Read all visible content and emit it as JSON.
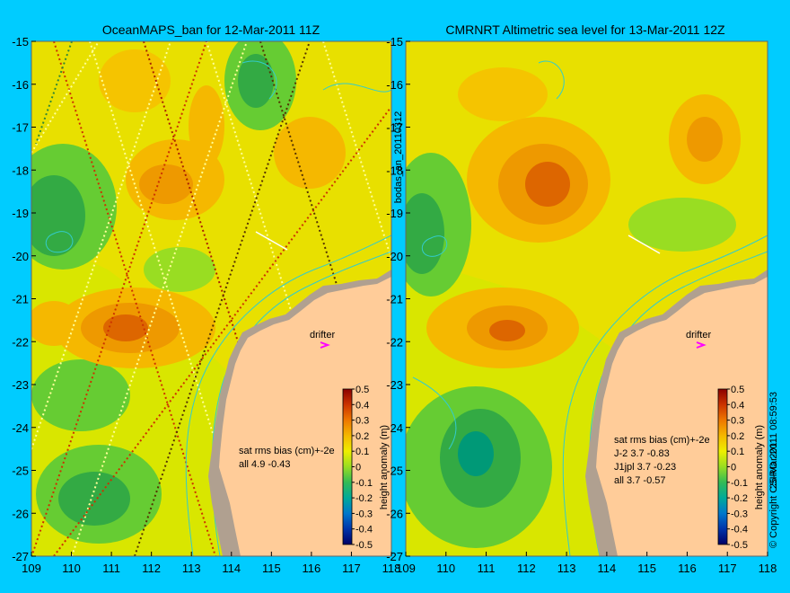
{
  "left_panel": {
    "title": "OceanMAPS_ban for 12-Mar-2011 11Z",
    "side_label": "bodas_an_20110312",
    "stats_header": "sat rms bias (cm)+-2e",
    "stats_rows": [
      "all 4.9 -0.43"
    ],
    "drifter_label": "drifter"
  },
  "right_panel": {
    "title": "CMRNRT Altimetric sea level  for 13-Mar-2011 12Z",
    "side_label": "25-Mar-2011 08:59:53",
    "stats_header": "sat rms bias (cm)+-2e",
    "stats_rows": [
      "J-2    3.7  -0.83",
      "J1jpl  3.7  -0.23",
      "all  3.7  -0.57"
    ],
    "drifter_label": "drifter",
    "copyright": "© Copyright CSIRO 2011"
  },
  "axes": {
    "lat_ticks": [
      "-15",
      "-16",
      "-17",
      "-18",
      "-19",
      "-20",
      "-21",
      "-22",
      "-23",
      "-24",
      "-25",
      "-26",
      "-27"
    ],
    "lon_ticks": [
      "109",
      "110",
      "111",
      "112",
      "113",
      "114",
      "115",
      "116",
      "117",
      "118"
    ]
  },
  "colorbar": {
    "label": "height anomaly (m)",
    "ticks": [
      "0.5",
      "0.4",
      "0.3",
      "0.2",
      "0.1",
      "0",
      "-0.1",
      "-0.2",
      "-0.3",
      "-0.4",
      "-0.5"
    ],
    "range": [
      -0.5,
      0.5
    ]
  },
  "colors": {
    "background": "#00ccff",
    "land": "#ffcc99",
    "shelf": "#b0a090",
    "contour": "#33cccc"
  }
}
